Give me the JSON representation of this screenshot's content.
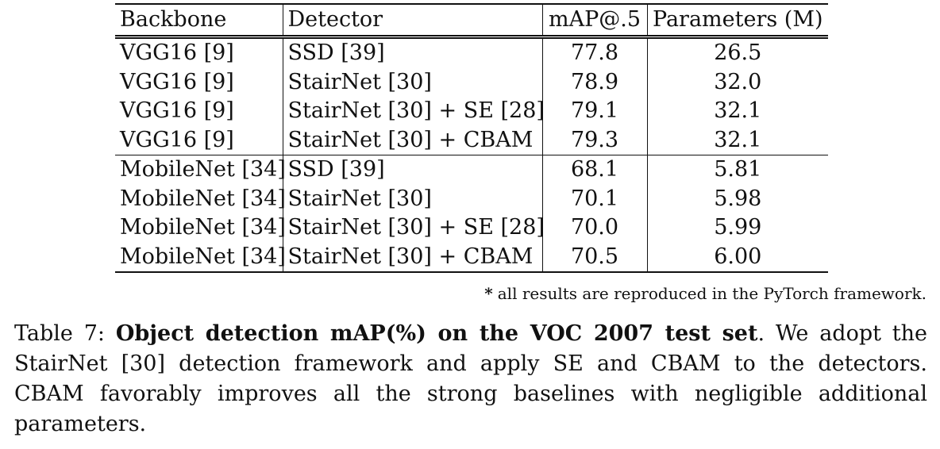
{
  "table": {
    "headers": [
      "Backbone",
      "Detector",
      "mAP@.5",
      "Parameters (M)"
    ],
    "groups": [
      {
        "rows": [
          {
            "backbone": "VGG16 [9]",
            "detector": "SSD [39]",
            "map": "77.8",
            "params": "26.5",
            "bold_map": false
          },
          {
            "backbone": "VGG16 [9]",
            "detector": "StairNet [30]",
            "map": "78.9",
            "params": "32.0",
            "bold_map": false
          },
          {
            "backbone": "VGG16 [9]",
            "detector": "StairNet [30] + SE [28]",
            "map": "79.1",
            "params": "32.1",
            "bold_map": false
          },
          {
            "backbone": "VGG16 [9]",
            "detector": "StairNet [30] + CBAM",
            "map": "79.3",
            "params": "32.1",
            "bold_map": true
          }
        ]
      },
      {
        "rows": [
          {
            "backbone": "MobileNet [34]",
            "detector": "SSD [39]",
            "map": "68.1",
            "params": "5.81",
            "bold_map": false
          },
          {
            "backbone": "MobileNet [34]",
            "detector": "StairNet [30]",
            "map": "70.1",
            "params": "5.98",
            "bold_map": false
          },
          {
            "backbone": "MobileNet [34]",
            "detector": "StairNet [30] + SE [28]",
            "map": "70.0",
            "params": "5.99",
            "bold_map": false
          },
          {
            "backbone": "MobileNet [34]",
            "detector": "StairNet [30] + CBAM",
            "map": "70.5",
            "params": "6.00",
            "bold_map": true
          }
        ]
      }
    ]
  },
  "footnote": {
    "star": "*",
    "text": "all results are reproduced in the PyTorch framework."
  },
  "caption": {
    "label": "Table 7:",
    "title": "Object detection mAP(%) on the VOC 2007 test set",
    "body": ". We adopt the StairNet [30] detection framework and apply SE and CBAM to the detectors. CBAM favorably improves all the strong baselines with negligible additional parameters."
  }
}
